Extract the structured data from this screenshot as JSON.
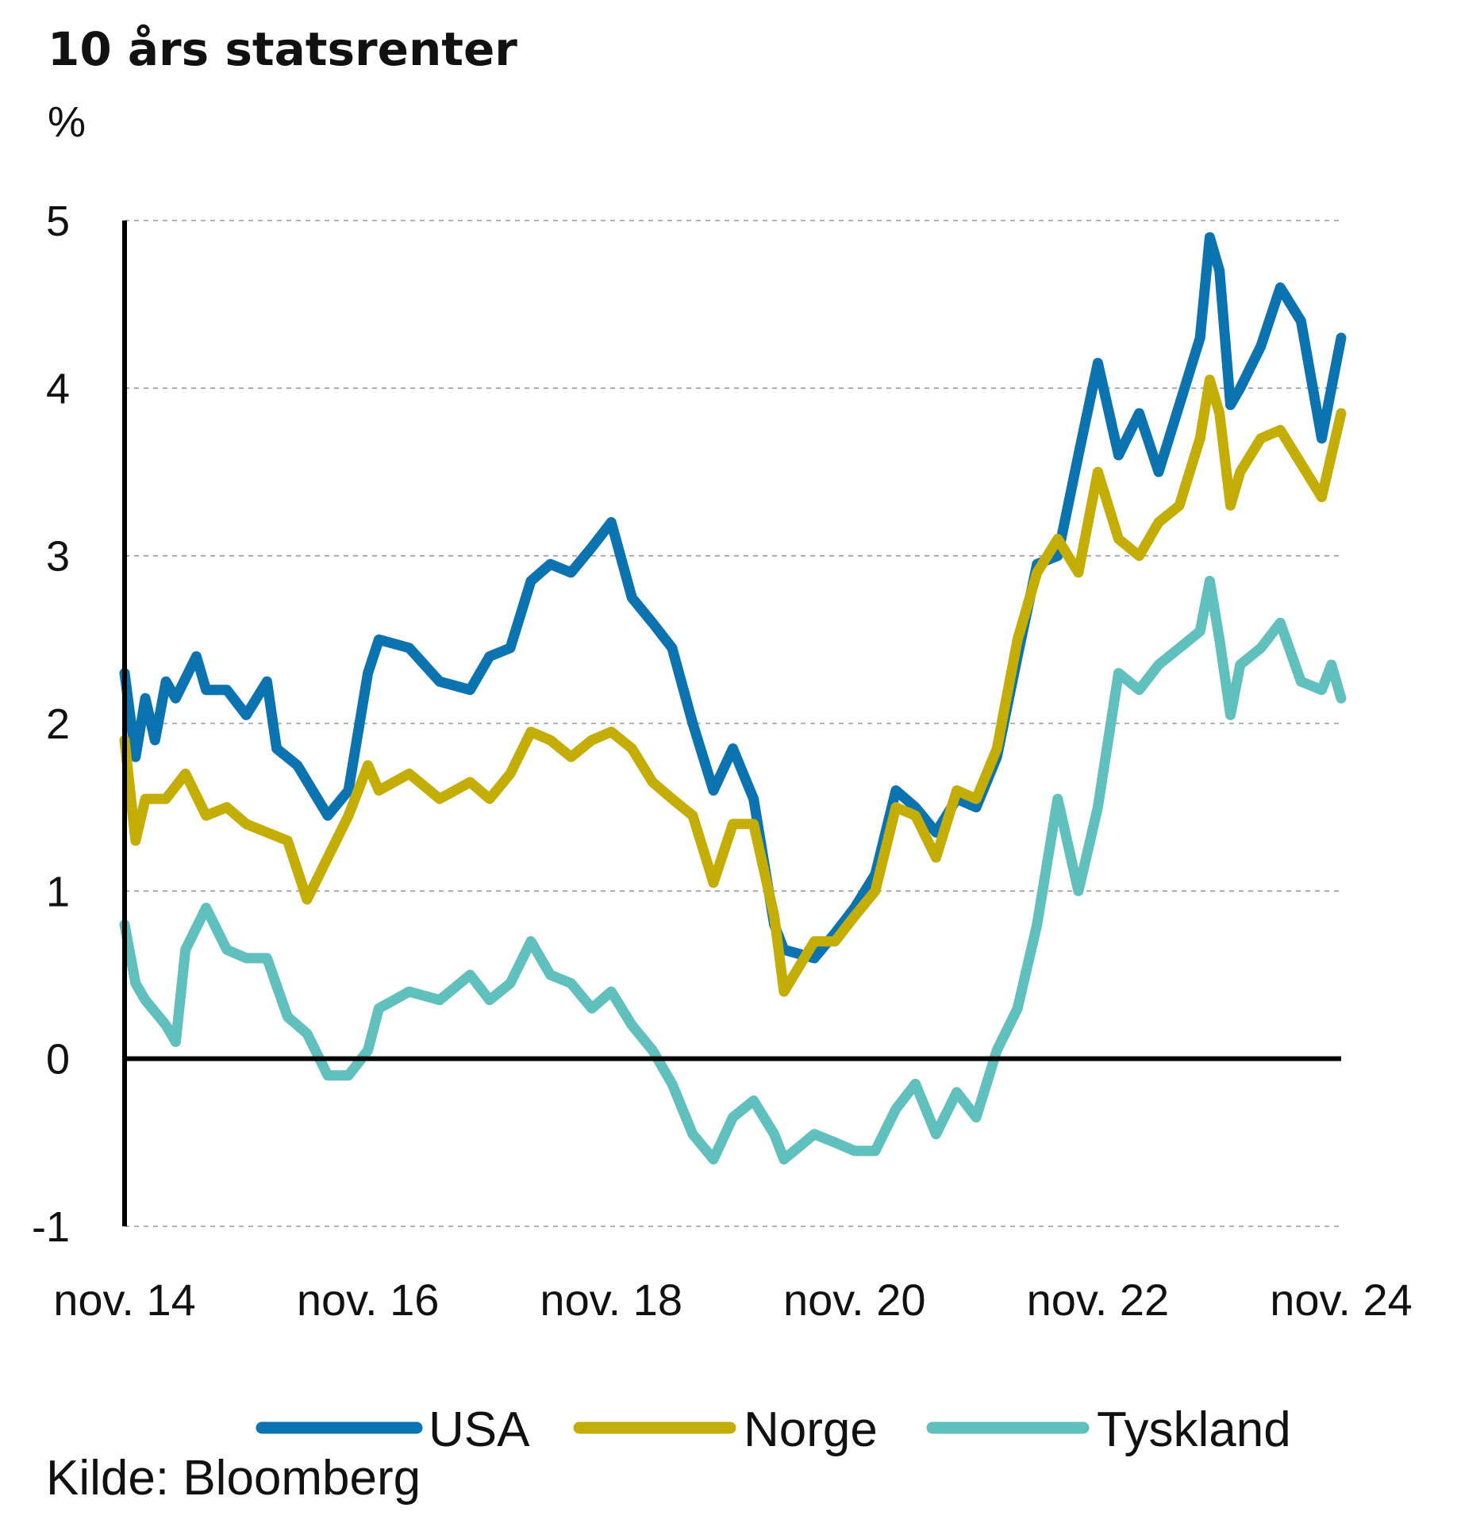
{
  "chart_data": {
    "type": "line",
    "title": "10 års statsrenter",
    "unit_label": "%",
    "source": "Kilde: Bloomberg",
    "ylim": [
      -1,
      5
    ],
    "yticks": [
      "5",
      "4",
      "3",
      "2",
      "1",
      "0",
      "-1"
    ],
    "ytick_values": [
      5,
      4,
      3,
      2,
      1,
      0,
      -1
    ],
    "xlim": [
      2014.83,
      2024.83
    ],
    "xticks": [
      "nov. 14",
      "nov. 16",
      "nov. 18",
      "nov. 20",
      "nov. 22",
      "nov. 24"
    ],
    "xtick_values": [
      2014.83,
      2016.83,
      2018.83,
      2020.83,
      2022.83,
      2024.83
    ],
    "grid": true,
    "legend_position": "bottom",
    "series": [
      {
        "name": "USA",
        "color": "#0a73b0",
        "x": [
          2014.83,
          2014.92,
          2015.0,
          2015.08,
          2015.17,
          2015.25,
          2015.42,
          2015.5,
          2015.67,
          2015.83,
          2016.0,
          2016.08,
          2016.25,
          2016.5,
          2016.67,
          2016.83,
          2016.92,
          2017.17,
          2017.42,
          2017.67,
          2017.83,
          2018.0,
          2018.17,
          2018.33,
          2018.5,
          2018.67,
          2018.83,
          2019.0,
          2019.17,
          2019.33,
          2019.5,
          2019.67,
          2019.83,
          2020.0,
          2020.17,
          2020.25,
          2020.5,
          2020.67,
          2020.83,
          2021.0,
          2021.17,
          2021.33,
          2021.5,
          2021.67,
          2021.83,
          2022.0,
          2022.17,
          2022.33,
          2022.5,
          2022.67,
          2022.83,
          2023.0,
          2023.17,
          2023.33,
          2023.5,
          2023.67,
          2023.75,
          2023.83,
          2023.92,
          2024.0,
          2024.17,
          2024.33,
          2024.5,
          2024.67,
          2024.75,
          2024.83
        ],
        "values": [
          2.3,
          1.8,
          2.15,
          1.9,
          2.25,
          2.15,
          2.4,
          2.2,
          2.2,
          2.05,
          2.25,
          1.85,
          1.75,
          1.45,
          1.6,
          2.3,
          2.5,
          2.45,
          2.25,
          2.2,
          2.4,
          2.45,
          2.85,
          2.95,
          2.9,
          3.05,
          3.2,
          2.75,
          2.6,
          2.45,
          2.0,
          1.6,
          1.85,
          1.55,
          0.8,
          0.65,
          0.6,
          0.75,
          0.9,
          1.1,
          1.6,
          1.5,
          1.35,
          1.55,
          1.5,
          1.8,
          2.4,
          2.95,
          3.0,
          3.6,
          4.15,
          3.6,
          3.85,
          3.5,
          3.9,
          4.3,
          4.9,
          4.7,
          3.9,
          4.0,
          4.25,
          4.6,
          4.4,
          3.7,
          4.0,
          4.3
        ]
      },
      {
        "name": "Norge",
        "color": "#c4ae05",
        "x": [
          2014.83,
          2014.92,
          2015.0,
          2015.17,
          2015.33,
          2015.5,
          2015.67,
          2015.83,
          2016.0,
          2016.17,
          2016.33,
          2016.5,
          2016.67,
          2016.83,
          2016.92,
          2017.17,
          2017.42,
          2017.67,
          2017.83,
          2018.0,
          2018.17,
          2018.33,
          2018.5,
          2018.67,
          2018.83,
          2019.0,
          2019.17,
          2019.33,
          2019.5,
          2019.67,
          2019.83,
          2020.0,
          2020.17,
          2020.25,
          2020.5,
          2020.67,
          2020.83,
          2021.0,
          2021.17,
          2021.33,
          2021.5,
          2021.67,
          2021.83,
          2022.0,
          2022.17,
          2022.33,
          2022.5,
          2022.67,
          2022.83,
          2023.0,
          2023.17,
          2023.33,
          2023.5,
          2023.67,
          2023.75,
          2023.83,
          2023.92,
          2024.0,
          2024.17,
          2024.33,
          2024.5,
          2024.67,
          2024.75,
          2024.83
        ],
        "values": [
          1.9,
          1.3,
          1.55,
          1.55,
          1.7,
          1.45,
          1.5,
          1.4,
          1.35,
          1.3,
          0.95,
          1.2,
          1.45,
          1.75,
          1.6,
          1.7,
          1.55,
          1.65,
          1.55,
          1.7,
          1.95,
          1.9,
          1.8,
          1.9,
          1.95,
          1.85,
          1.65,
          1.55,
          1.45,
          1.05,
          1.4,
          1.4,
          0.85,
          0.4,
          0.7,
          0.7,
          0.85,
          1.0,
          1.5,
          1.45,
          1.2,
          1.6,
          1.55,
          1.85,
          2.5,
          2.9,
          3.1,
          2.9,
          3.5,
          3.1,
          3.0,
          3.2,
          3.3,
          3.7,
          4.05,
          3.85,
          3.3,
          3.5,
          3.7,
          3.75,
          3.55,
          3.35,
          3.6,
          3.85
        ]
      },
      {
        "name": "Tyskland",
        "color": "#5fc0bd",
        "x": [
          2014.83,
          2014.92,
          2015.0,
          2015.17,
          2015.25,
          2015.33,
          2015.5,
          2015.67,
          2015.83,
          2016.0,
          2016.17,
          2016.33,
          2016.5,
          2016.67,
          2016.83,
          2016.92,
          2017.17,
          2017.42,
          2017.67,
          2017.83,
          2018.0,
          2018.17,
          2018.33,
          2018.5,
          2018.67,
          2018.83,
          2019.0,
          2019.17,
          2019.33,
          2019.5,
          2019.67,
          2019.83,
          2020.0,
          2020.17,
          2020.25,
          2020.5,
          2020.67,
          2020.83,
          2021.0,
          2021.17,
          2021.33,
          2021.5,
          2021.67,
          2021.83,
          2022.0,
          2022.17,
          2022.33,
          2022.5,
          2022.67,
          2022.83,
          2023.0,
          2023.17,
          2023.33,
          2023.5,
          2023.67,
          2023.75,
          2023.83,
          2023.92,
          2024.0,
          2024.17,
          2024.33,
          2024.5,
          2024.67,
          2024.75,
          2024.83
        ],
        "values": [
          0.8,
          0.45,
          0.35,
          0.2,
          0.1,
          0.65,
          0.9,
          0.65,
          0.6,
          0.6,
          0.25,
          0.15,
          -0.1,
          -0.1,
          0.05,
          0.3,
          0.4,
          0.35,
          0.5,
          0.35,
          0.45,
          0.7,
          0.5,
          0.45,
          0.3,
          0.4,
          0.2,
          0.05,
          -0.15,
          -0.45,
          -0.6,
          -0.35,
          -0.25,
          -0.45,
          -0.6,
          -0.45,
          -0.5,
          -0.55,
          -0.55,
          -0.3,
          -0.15,
          -0.45,
          -0.2,
          -0.35,
          0.05,
          0.3,
          0.8,
          1.55,
          1.0,
          1.5,
          2.3,
          2.2,
          2.35,
          2.45,
          2.55,
          2.85,
          2.5,
          2.05,
          2.35,
          2.45,
          2.6,
          2.25,
          2.2,
          2.35,
          2.15
        ]
      }
    ]
  }
}
